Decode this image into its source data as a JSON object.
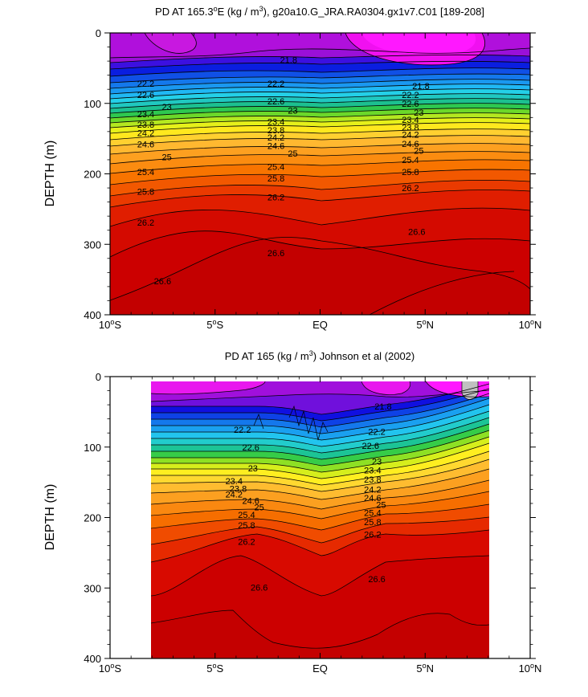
{
  "chart_data": [
    {
      "type": "contour",
      "title": {
        "pre": "PD AT 165.3",
        "deg": "o",
        "mid": "E (kg / m",
        "sup": "3",
        "post": "), g20a10.G_JRA.RA0304.gx1v7.C01 [189-208]"
      },
      "ylabel": "DEPTH (m)",
      "xlim": [
        -10,
        10
      ],
      "ylim": [
        0,
        400
      ],
      "y_inverted": true,
      "xticks": [
        {
          "v": -10,
          "label": "10",
          "deg": "o",
          "hemi": "S"
        },
        {
          "v": -5,
          "label": "5",
          "deg": "o",
          "hemi": "S"
        },
        {
          "v": 0,
          "label": "EQ",
          "deg": "",
          "hemi": ""
        },
        {
          "v": 5,
          "label": "5",
          "deg": "o",
          "hemi": "N"
        },
        {
          "v": 10,
          "label": "10",
          "deg": "o",
          "hemi": "N"
        }
      ],
      "yticks": [
        "0",
        "100",
        "200",
        "300",
        "400"
      ],
      "data_x_range": [
        -10,
        10
      ],
      "contour_labels": [
        {
          "text": "21.8",
          "x": -1.5,
          "y": 38
        },
        {
          "text": "21.8",
          "x": 4.8,
          "y": 75
        },
        {
          "text": "22.2",
          "x": -8.3,
          "y": 72
        },
        {
          "text": "22.2",
          "x": -2.1,
          "y": 72
        },
        {
          "text": "22.2",
          "x": 4.3,
          "y": 88
        },
        {
          "text": "22.6",
          "x": -8.3,
          "y": 88
        },
        {
          "text": "22.6",
          "x": -2.1,
          "y": 97
        },
        {
          "text": "22.6",
          "x": 4.3,
          "y": 100
        },
        {
          "text": "23",
          "x": -7.3,
          "y": 105
        },
        {
          "text": "23",
          "x": -1.3,
          "y": 110
        },
        {
          "text": "23",
          "x": 4.7,
          "y": 113
        },
        {
          "text": "23.4",
          "x": -8.3,
          "y": 115
        },
        {
          "text": "23.4",
          "x": -2.1,
          "y": 126
        },
        {
          "text": "23.4",
          "x": 4.3,
          "y": 123
        },
        {
          "text": "23.8",
          "x": -8.3,
          "y": 130
        },
        {
          "text": "23.8",
          "x": -2.1,
          "y": 138
        },
        {
          "text": "23.8",
          "x": 4.3,
          "y": 134
        },
        {
          "text": "24.2",
          "x": -8.3,
          "y": 142
        },
        {
          "text": "24.2",
          "x": -2.1,
          "y": 148
        },
        {
          "text": "24.2",
          "x": 4.3,
          "y": 144
        },
        {
          "text": "24.6",
          "x": -8.3,
          "y": 158
        },
        {
          "text": "24.6",
          "x": -2.1,
          "y": 160
        },
        {
          "text": "24.6",
          "x": 4.3,
          "y": 157
        },
        {
          "text": "25",
          "x": -7.3,
          "y": 176
        },
        {
          "text": "25",
          "x": -1.3,
          "y": 171
        },
        {
          "text": "25",
          "x": 4.7,
          "y": 167
        },
        {
          "text": "25.4",
          "x": -8.3,
          "y": 197
        },
        {
          "text": "25.4",
          "x": -2.1,
          "y": 190
        },
        {
          "text": "25.4",
          "x": 4.3,
          "y": 180
        },
        {
          "text": "25.8",
          "x": -8.3,
          "y": 225
        },
        {
          "text": "25.8",
          "x": -2.1,
          "y": 206
        },
        {
          "text": "25.8",
          "x": 4.3,
          "y": 197
        },
        {
          "text": "26.2",
          "x": -8.3,
          "y": 269
        },
        {
          "text": "26.2",
          "x": -2.1,
          "y": 233
        },
        {
          "text": "26.2",
          "x": 4.3,
          "y": 220
        },
        {
          "text": "26.6",
          "x": -2.1,
          "y": 312
        },
        {
          "text": "26.6",
          "x": 4.6,
          "y": 282
        },
        {
          "text": "26.6",
          "x": -7.5,
          "y": 352
        }
      ]
    },
    {
      "type": "contour",
      "title": {
        "pre": "PD AT 165 (kg / m",
        "sup": "3",
        "post": ") Johnson et al (2002)"
      },
      "ylabel": "DEPTH (m)",
      "xlim": [
        -10,
        10
      ],
      "ylim": [
        0,
        400
      ],
      "y_inverted": true,
      "xticks": [
        {
          "v": -10,
          "label": "10",
          "deg": "o",
          "hemi": "S"
        },
        {
          "v": -5,
          "label": "5",
          "deg": "o",
          "hemi": "S"
        },
        {
          "v": 0,
          "label": "EQ",
          "deg": "",
          "hemi": ""
        },
        {
          "v": 5,
          "label": "5",
          "deg": "o",
          "hemi": "N"
        },
        {
          "v": 10,
          "label": "10",
          "deg": "o",
          "hemi": "N"
        }
      ],
      "yticks": [
        "0",
        "100",
        "200",
        "300",
        "400"
      ],
      "data_x_range": [
        -8,
        8
      ],
      "missing_data_patch": {
        "x": 7.0,
        "depth": [
          5,
          35
        ],
        "color": "#c0c0c0"
      },
      "contour_labels": [
        {
          "text": "21.8",
          "x": 3,
          "y": 42
        },
        {
          "text": "22.2",
          "x": -3.7,
          "y": 75
        },
        {
          "text": "22.2",
          "x": 2.7,
          "y": 78
        },
        {
          "text": "22.6",
          "x": -3.3,
          "y": 100
        },
        {
          "text": "22.6",
          "x": 2.4,
          "y": 98
        },
        {
          "text": "23",
          "x": -3.2,
          "y": 130
        },
        {
          "text": "23",
          "x": 2.7,
          "y": 120
        },
        {
          "text": "23.4",
          "x": -4.1,
          "y": 148
        },
        {
          "text": "23.4",
          "x": 2.5,
          "y": 133
        },
        {
          "text": "23.8",
          "x": -3.9,
          "y": 159
        },
        {
          "text": "23.8",
          "x": 2.5,
          "y": 146
        },
        {
          "text": "24.2",
          "x": -4.1,
          "y": 167
        },
        {
          "text": "24.2",
          "x": 2.5,
          "y": 160
        },
        {
          "text": "24.6",
          "x": -3.3,
          "y": 176
        },
        {
          "text": "24.6",
          "x": 2.5,
          "y": 172
        },
        {
          "text": "25",
          "x": -2.9,
          "y": 185
        },
        {
          "text": "25",
          "x": 2.9,
          "y": 182
        },
        {
          "text": "25.4",
          "x": -3.5,
          "y": 196
        },
        {
          "text": "25.4",
          "x": 2.5,
          "y": 193
        },
        {
          "text": "25.8",
          "x": -3.5,
          "y": 211
        },
        {
          "text": "25.8",
          "x": 2.5,
          "y": 206
        },
        {
          "text": "26.2",
          "x": -3.5,
          "y": 234
        },
        {
          "text": "26.2",
          "x": 2.5,
          "y": 224
        },
        {
          "text": "26.6",
          "x": -2.9,
          "y": 299
        },
        {
          "text": "26.6",
          "x": 2.7,
          "y": 287
        }
      ]
    }
  ]
}
